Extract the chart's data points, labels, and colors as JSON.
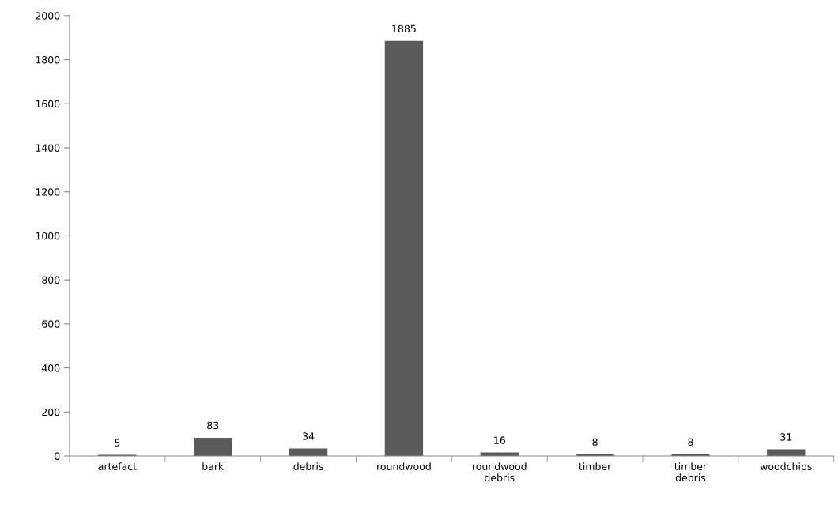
{
  "chart_data": {
    "type": "bar",
    "categories": [
      "artefact",
      "bark",
      "debris",
      "roundwood",
      "roundwood debris",
      "timber",
      "timber debris",
      "woodchips"
    ],
    "values": [
      5,
      83,
      34,
      1885,
      16,
      8,
      8,
      31
    ],
    "color": "#5a5a5a",
    "ylim": [
      0,
      2000
    ],
    "yticks": [
      0,
      200,
      400,
      600,
      800,
      1000,
      1200,
      1400,
      1600,
      1800,
      2000
    ],
    "data_labels": true,
    "grid": false,
    "legend": false
  }
}
